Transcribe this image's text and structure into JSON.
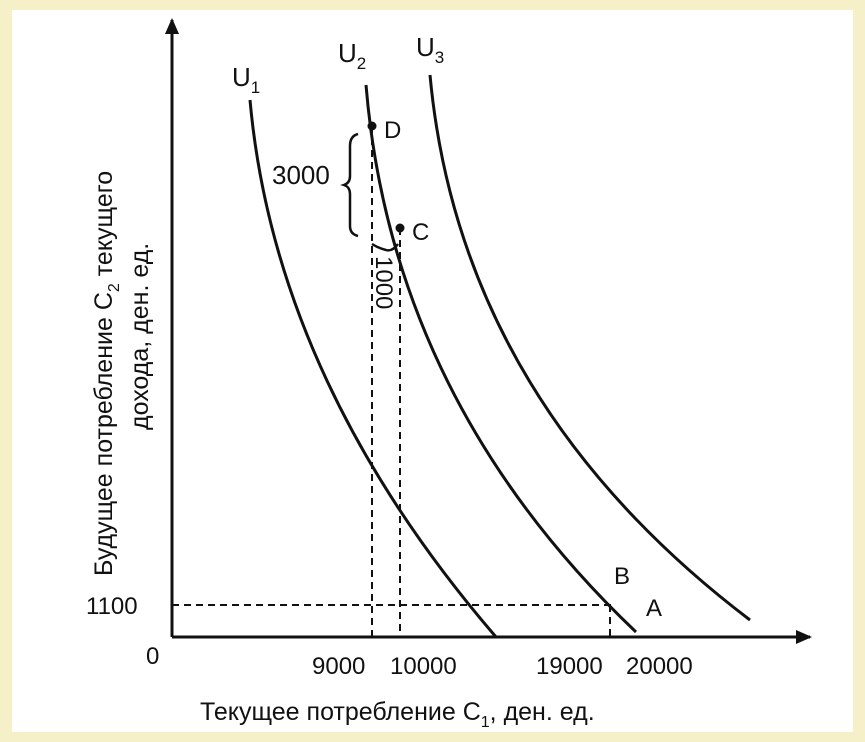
{
  "chart_data": {
    "type": "line",
    "xlabel": {
      "main": "Текущее потребление С",
      "sub": "1",
      "rest": ", ден. ед."
    },
    "ylabel": {
      "line1": {
        "main": "Будущее потребление С",
        "sub": "2",
        "rest": " текущего"
      },
      "line2": "дохода, ден. ед."
    },
    "origin_label": "0",
    "x_ticks": [
      "9000",
      "10000",
      "19000",
      "20000"
    ],
    "y_ticks": [
      "1100"
    ],
    "series": [
      {
        "name": {
          "main": "U",
          "sub": "1"
        }
      },
      {
        "name": {
          "main": "U",
          "sub": "2"
        }
      },
      {
        "name": {
          "main": "U",
          "sub": "3"
        }
      }
    ],
    "points": [
      {
        "name": "D",
        "x": 9000
      },
      {
        "name": "C",
        "x": 10000
      },
      {
        "name": "B",
        "x": 19000,
        "y": 1100
      },
      {
        "name": "A",
        "x": 20000,
        "y": 1100
      }
    ],
    "braces": [
      {
        "label": "3000"
      },
      {
        "label": "1000"
      }
    ],
    "colors": {
      "ink": "#111111",
      "background": "#ffffff",
      "frame": "#f6f0c8"
    }
  }
}
